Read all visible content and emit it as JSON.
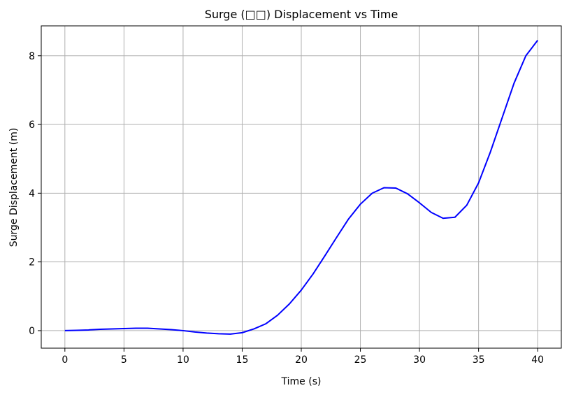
{
  "chart_data": {
    "type": "line",
    "title": "Surge (□□) Displacement vs Time",
    "xlabel": "Time (s)",
    "ylabel": "Surge Displacement (m)",
    "x": [
      0,
      1,
      2,
      3,
      4,
      5,
      6,
      7,
      8,
      9,
      10,
      11,
      12,
      13,
      14,
      15,
      16,
      17,
      18,
      19,
      20,
      21,
      22,
      23,
      24,
      25,
      26,
      27,
      28,
      29,
      30,
      31,
      32,
      33,
      34,
      35,
      36,
      37,
      38,
      39,
      40
    ],
    "series": [
      {
        "color": "#0000ff",
        "values": [
          0,
          0.01,
          0.02,
          0.04,
          0.05,
          0.06,
          0.07,
          0.07,
          0.05,
          0.03,
          0.0,
          -0.04,
          -0.07,
          -0.09,
          -0.1,
          -0.06,
          0.05,
          0.2,
          0.45,
          0.78,
          1.18,
          1.65,
          2.18,
          2.72,
          3.25,
          3.68,
          4.0,
          4.16,
          4.15,
          3.98,
          3.72,
          3.44,
          3.27,
          3.3,
          3.65,
          4.3,
          5.2,
          6.2,
          7.2,
          8.0,
          8.45
        ]
      }
    ],
    "xlim": [
      -2,
      42
    ],
    "ylim": [
      -0.51,
      8.87
    ],
    "xticks": [
      0,
      5,
      10,
      15,
      20,
      25,
      30,
      35,
      40
    ],
    "yticks": [
      0,
      2,
      4,
      6,
      8
    ],
    "grid": true
  }
}
